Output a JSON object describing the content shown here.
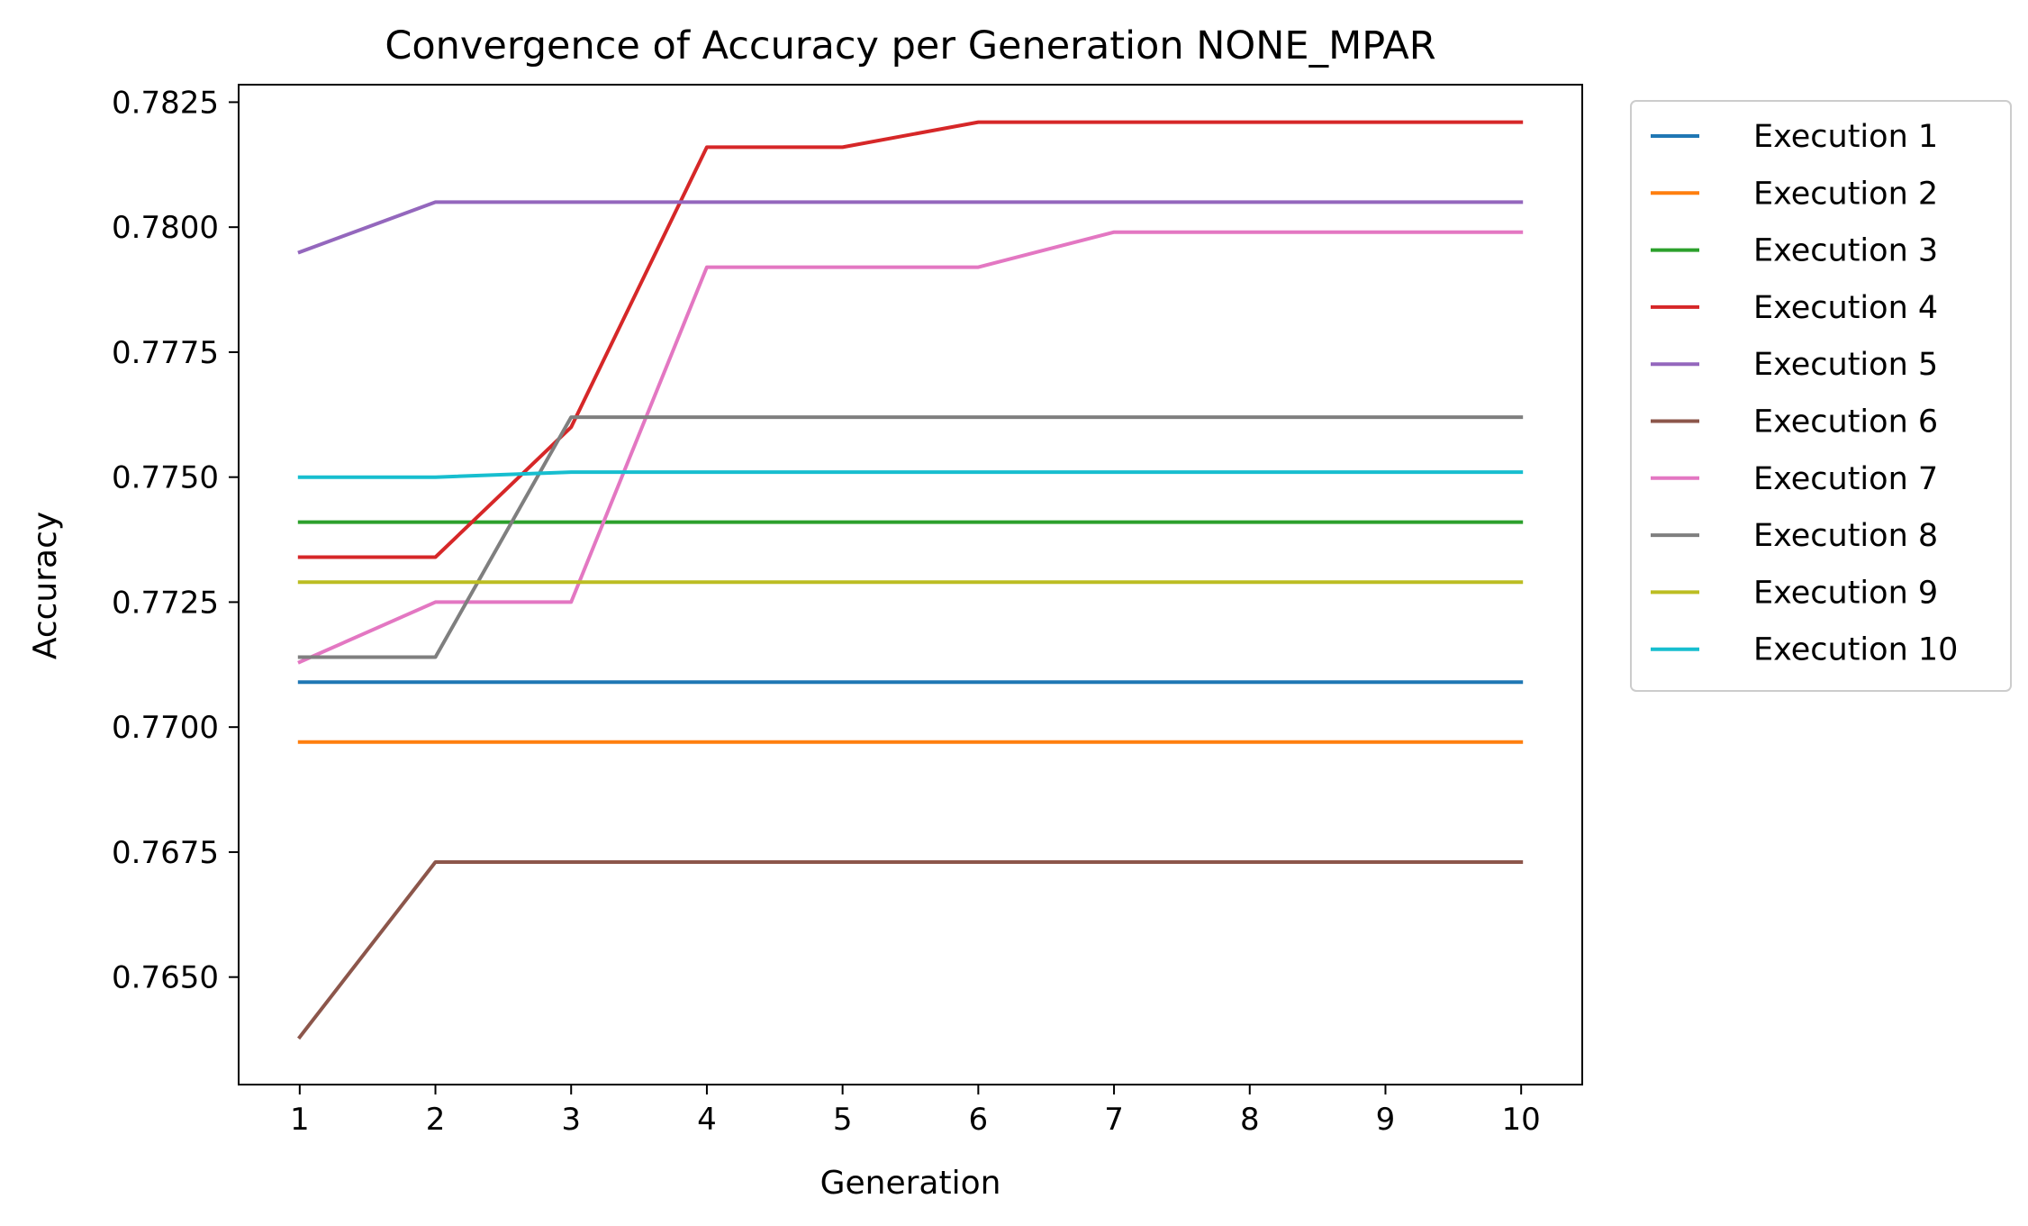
{
  "chart_data": {
    "type": "line",
    "title": "Convergence of Accuracy per Generation NONE_MPAR",
    "xlabel": "Generation",
    "ylabel": "Accuracy",
    "x": [
      1,
      2,
      3,
      4,
      5,
      6,
      7,
      8,
      9,
      10
    ],
    "xlim": [
      0.55,
      10.45
    ],
    "ylim": [
      0.76285,
      0.78285
    ],
    "yticks": [
      0.765,
      0.7675,
      0.77,
      0.7725,
      0.775,
      0.7775,
      0.78,
      0.7825
    ],
    "ytick_labels": [
      "0.7650",
      "0.7675",
      "0.7700",
      "0.7725",
      "0.7750",
      "0.7775",
      "0.7800",
      "0.7825"
    ],
    "xtick_labels": [
      "1",
      "2",
      "3",
      "4",
      "5",
      "6",
      "7",
      "8",
      "9",
      "10"
    ],
    "grid": false,
    "legend_position": "outside-right",
    "series": [
      {
        "name": "Execution 1",
        "color": "#1f77b4",
        "values": [
          0.7709,
          0.7709,
          0.7709,
          0.7709,
          0.7709,
          0.7709,
          0.7709,
          0.7709,
          0.7709,
          0.7709
        ]
      },
      {
        "name": "Execution 2",
        "color": "#ff7f0e",
        "values": [
          0.7697,
          0.7697,
          0.7697,
          0.7697,
          0.7697,
          0.7697,
          0.7697,
          0.7697,
          0.7697,
          0.7697
        ]
      },
      {
        "name": "Execution 3",
        "color": "#2ca02c",
        "values": [
          0.7741,
          0.7741,
          0.7741,
          0.7741,
          0.7741,
          0.7741,
          0.7741,
          0.7741,
          0.7741,
          0.7741
        ]
      },
      {
        "name": "Execution 4",
        "color": "#d62728",
        "values": [
          0.7734,
          0.7734,
          0.776,
          0.7816,
          0.7816,
          0.7821,
          0.7821,
          0.7821,
          0.7821,
          0.7821
        ]
      },
      {
        "name": "Execution 5",
        "color": "#9467bd",
        "values": [
          0.7795,
          0.7805,
          0.7805,
          0.7805,
          0.7805,
          0.7805,
          0.7805,
          0.7805,
          0.7805,
          0.7805
        ]
      },
      {
        "name": "Execution 6",
        "color": "#8c564b",
        "values": [
          0.7638,
          0.7673,
          0.7673,
          0.7673,
          0.7673,
          0.7673,
          0.7673,
          0.7673,
          0.7673,
          0.7673
        ]
      },
      {
        "name": "Execution 7",
        "color": "#e377c2",
        "values": [
          0.7713,
          0.7725,
          0.7725,
          0.7792,
          0.7792,
          0.7792,
          0.7799,
          0.7799,
          0.7799,
          0.7799
        ]
      },
      {
        "name": "Execution 8",
        "color": "#7f7f7f",
        "values": [
          0.7714,
          0.7714,
          0.7762,
          0.7762,
          0.7762,
          0.7762,
          0.7762,
          0.7762,
          0.7762,
          0.7762
        ]
      },
      {
        "name": "Execution 9",
        "color": "#bcbd22",
        "values": [
          0.7729,
          0.7729,
          0.7729,
          0.7729,
          0.7729,
          0.7729,
          0.7729,
          0.7729,
          0.7729,
          0.7729
        ]
      },
      {
        "name": "Execution 10",
        "color": "#17becf",
        "values": [
          0.775,
          0.775,
          0.7751,
          0.7751,
          0.7751,
          0.7751,
          0.7751,
          0.7751,
          0.7751,
          0.7751
        ]
      }
    ]
  }
}
